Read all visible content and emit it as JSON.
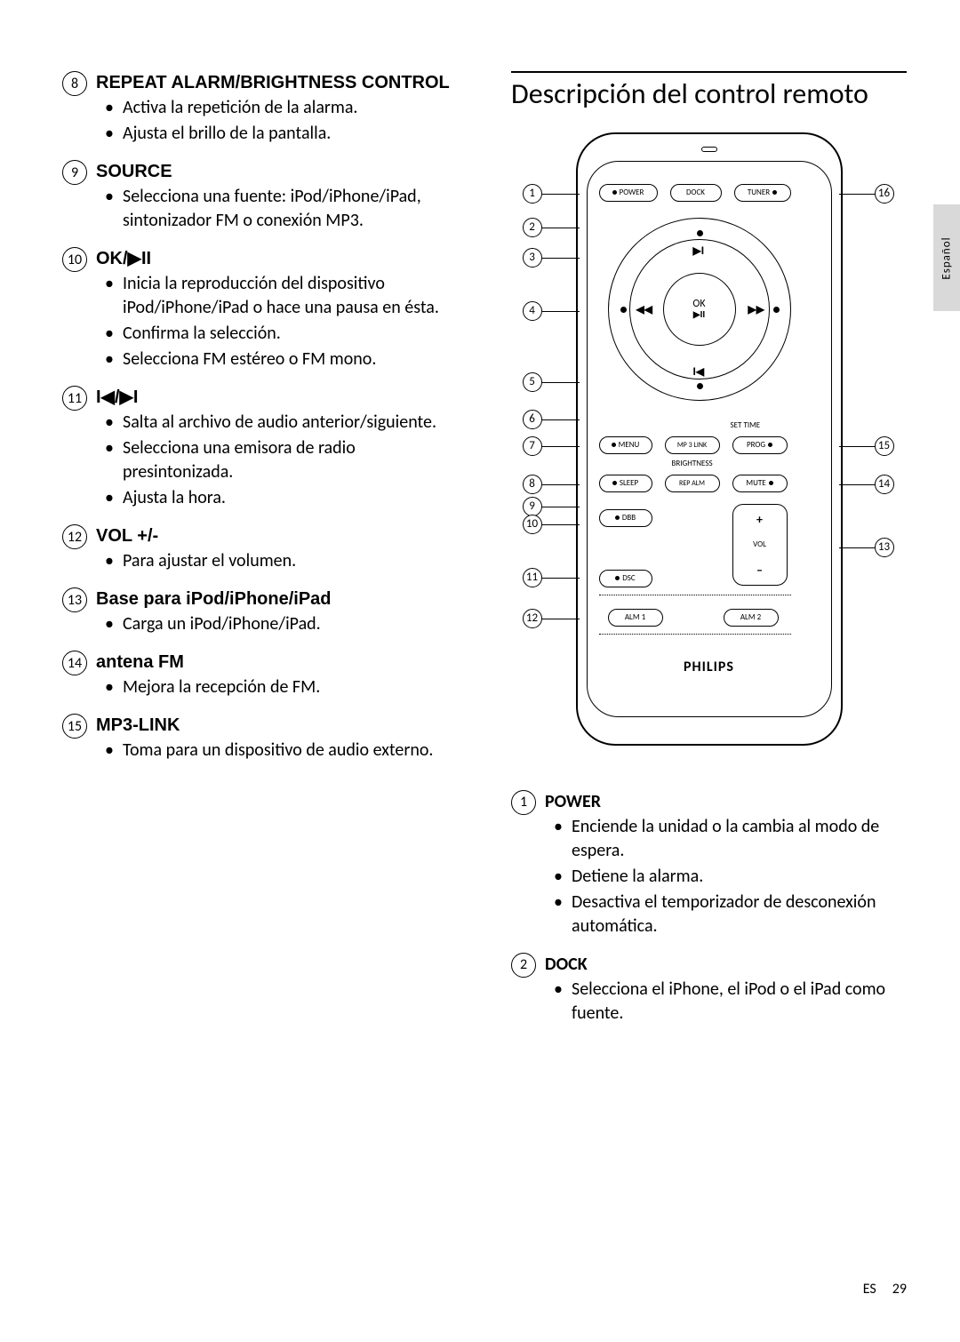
{
  "left_items": [
    {
      "num": "8",
      "title": "REPEAT ALARM/BRIGHTNESS CONTROL",
      "bullets": [
        "Activa la repetición de la alarma.",
        "Ajusta el brillo de la pantalla."
      ]
    },
    {
      "num": "9",
      "title": "SOURCE",
      "bullets": [
        "Selecciona una fuente: iPod/iPhone/iPad, sintonizador FM o conexión MP3."
      ]
    },
    {
      "num": "10",
      "title": "OK/▶II",
      "bullets": [
        "Inicia la reproducción del dispositivo iPod/iPhone/iPad o hace una pausa en ésta.",
        "Confirma la selección.",
        "Selecciona FM estéreo o FM mono."
      ]
    },
    {
      "num": "11",
      "title": "I◀/▶I",
      "bullets": [
        "Salta al archivo de audio anterior/siguiente.",
        "Selecciona una emisora de radio presintonizada.",
        "Ajusta la hora."
      ]
    },
    {
      "num": "12",
      "title": "VOL +/-",
      "bullets": [
        "Para ajustar el volumen."
      ]
    },
    {
      "num": "13",
      "title": "Base para iPod/iPhone/iPad",
      "upper": false,
      "bullets": [
        "Carga un iPod/iPhone/iPad."
      ]
    },
    {
      "num": "14",
      "title": "antena FM",
      "upper": false,
      "bullets": [
        "Mejora la recepción de FM."
      ]
    },
    {
      "num": "15",
      "title": "MP3-LINK",
      "bullets": [
        "Toma para un dispositivo de audio externo."
      ]
    }
  ],
  "right": {
    "heading": "Descripción del control remoto",
    "items": [
      {
        "num": "1",
        "title": "POWER",
        "bullets": [
          "Enciende la unidad o la cambia al modo de espera.",
          "Detiene la alarma.",
          "Desactiva el temporizador de desconexión automática."
        ]
      },
      {
        "num": "2",
        "title": "DOCK",
        "bullets": [
          "Selecciona el iPhone, el iPod o el iPad como fuente."
        ]
      }
    ]
  },
  "remote": {
    "power": "POWER",
    "dock": "DOCK",
    "tuner": "TUNER",
    "ok": "OK",
    "ok_sub": "▶II",
    "menu": "MENU",
    "mp3link": "MP 3 LINK",
    "prog": "PROG",
    "sleep": "SLEEP",
    "repalm": "REP ALM",
    "mute": "MUTE",
    "dbb": "DBB",
    "dsc": "DSC",
    "settime": "SET TIME",
    "brightness": "BRIGHTNESS",
    "vol": "VOL",
    "plus": "+",
    "minus": "–",
    "alm1": "ALM 1",
    "alm2": "ALM 2",
    "brand": "PHILIPS",
    "nav_up": "▶I",
    "nav_down": "I◀",
    "nav_left": "◀◀",
    "nav_right": "▶▶"
  },
  "callouts_left": [
    "1",
    "2",
    "3",
    "4",
    "5",
    "6",
    "7",
    "8",
    "9",
    "10",
    "11",
    "12"
  ],
  "callouts_right": [
    "16",
    "15",
    "14",
    "13"
  ],
  "side_tab": "Español",
  "footer": {
    "lang": "ES",
    "page": "29"
  }
}
